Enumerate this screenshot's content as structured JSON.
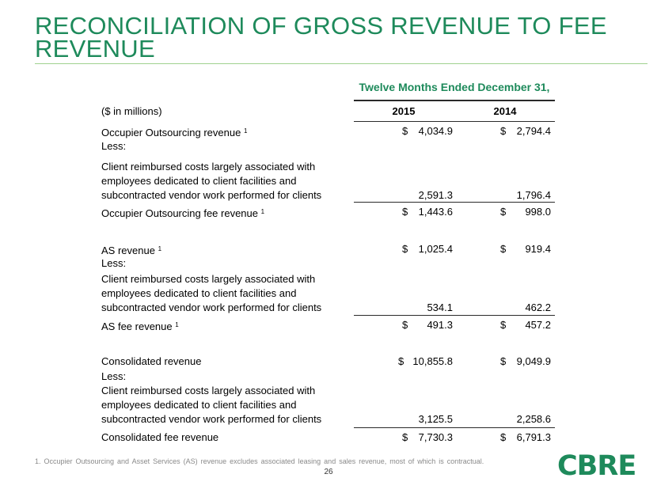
{
  "title": "RECONCILIATION OF GROSS REVENUE TO FEE REVENUE",
  "period_header": "Twelve Months Ended December 31,",
  "units_label": "($ in millions)",
  "columns": [
    "2015",
    "2014"
  ],
  "rows": [
    {
      "label": "Occupier Outsourcing revenue",
      "sup": "1",
      "v2015": "4,034.9",
      "v2014": "2,794.4",
      "dollar": true
    },
    {
      "label": "Less:"
    },
    {
      "label": "Client reimbursed costs largely associated with employees dedicated to client facilities and subcontracted vendor work performed for clients",
      "v2015": "2,591.3",
      "v2014": "1,796.4"
    },
    {
      "label": "Occupier Outsourcing fee revenue",
      "sup": "1",
      "v2015": "1,443.6",
      "v2014": "998.0",
      "dollar": true
    },
    {
      "label": "AS revenue",
      "sup": "1",
      "v2015": "1,025.4",
      "v2014": "919.4",
      "dollar": true
    },
    {
      "label": "Less:"
    },
    {
      "label": "Client reimbursed costs largely associated with employees dedicated to client facilities and subcontracted vendor work performed for clients",
      "v2015": "534.1",
      "v2014": "462.2"
    },
    {
      "label": "AS fee revenue",
      "sup": "1",
      "v2015": "491.3",
      "v2014": "457.2",
      "dollar": true
    },
    {
      "label": "Consolidated revenue",
      "v2015": "10,855.8",
      "v2014": "9,049.9",
      "dollar": true
    },
    {
      "label": "Less:"
    },
    {
      "label": "Client reimbursed costs largely associated with employees dedicated to client facilities and subcontracted vendor work performed for clients",
      "v2015": "3,125.5",
      "v2014": "2,258.6"
    },
    {
      "label": "Consolidated fee revenue",
      "v2015": "7,730.3",
      "v2014": "6,791.3",
      "dollar": true
    }
  ],
  "currency_symbol": "$",
  "footnote": "1.  Occupier Outsourcing and Asset Services (AS) revenue excludes associated leasing and sales revenue, most of which is contractual.",
  "page_number": "26",
  "logo_text": "CBRE",
  "colors": {
    "brand_green": "#1e8a5b",
    "rule_light_green": "#9fd18f"
  }
}
